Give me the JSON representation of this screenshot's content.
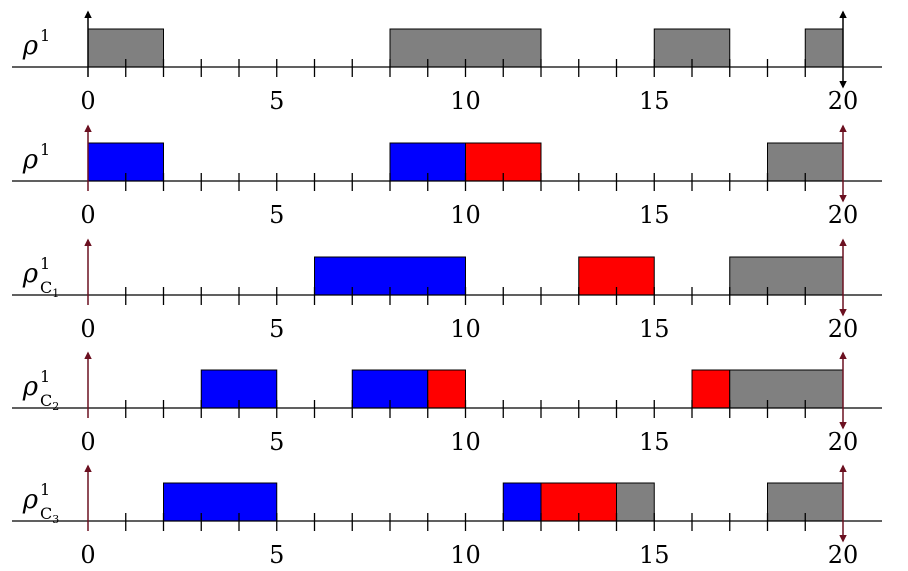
{
  "chart_data": {
    "type": "timeline",
    "x_ticks_labeled": [
      0,
      5,
      10,
      15,
      20
    ],
    "x_range": [
      0,
      20
    ],
    "colors": {
      "gray": "#808080",
      "blue": "#0000ff",
      "red": "#ff0000",
      "dark_red_arrow": "#6b1020",
      "black": "#000000"
    },
    "rows": [
      {
        "label": "ρ",
        "sup": "1",
        "sub": "",
        "left_arrow": "up",
        "left_arrow_color": "black",
        "right_arrow": "both",
        "right_arrow_color": "black",
        "blocks": [
          {
            "start": 0,
            "end": 2,
            "color": "gray"
          },
          {
            "start": 8,
            "end": 12,
            "color": "gray"
          },
          {
            "start": 15,
            "end": 17,
            "color": "gray"
          },
          {
            "start": 19,
            "end": 20,
            "color": "gray"
          }
        ]
      },
      {
        "label": "ρ",
        "sup": "1",
        "sub": "",
        "left_arrow": "up",
        "left_arrow_color": "dark_red_arrow",
        "right_arrow": "both",
        "right_arrow_color": "dark_red_arrow",
        "blocks": [
          {
            "start": 0,
            "end": 2,
            "color": "blue"
          },
          {
            "start": 8,
            "end": 10,
            "color": "blue"
          },
          {
            "start": 10,
            "end": 12,
            "color": "red"
          },
          {
            "start": 18,
            "end": 20,
            "color": "gray"
          }
        ]
      },
      {
        "label": "ρ",
        "sup": "1",
        "sub": "C1",
        "left_arrow": "up",
        "left_arrow_color": "dark_red_arrow",
        "right_arrow": "both",
        "right_arrow_color": "dark_red_arrow",
        "blocks": [
          {
            "start": 6,
            "end": 10,
            "color": "blue"
          },
          {
            "start": 13,
            "end": 15,
            "color": "red"
          },
          {
            "start": 17,
            "end": 20,
            "color": "gray"
          }
        ]
      },
      {
        "label": "ρ",
        "sup": "1",
        "sub": "C2",
        "left_arrow": "up",
        "left_arrow_color": "dark_red_arrow",
        "right_arrow": "both",
        "right_arrow_color": "dark_red_arrow",
        "blocks": [
          {
            "start": 3,
            "end": 5,
            "color": "blue"
          },
          {
            "start": 7,
            "end": 9,
            "color": "blue"
          },
          {
            "start": 9,
            "end": 10,
            "color": "red"
          },
          {
            "start": 16,
            "end": 17,
            "color": "red"
          },
          {
            "start": 17,
            "end": 20,
            "color": "gray"
          }
        ]
      },
      {
        "label": "ρ",
        "sup": "1",
        "sub": "C3",
        "left_arrow": "up",
        "left_arrow_color": "dark_red_arrow",
        "right_arrow": "both",
        "right_arrow_color": "dark_red_arrow",
        "blocks": [
          {
            "start": 2,
            "end": 5,
            "color": "blue"
          },
          {
            "start": 11,
            "end": 12,
            "color": "blue"
          },
          {
            "start": 12,
            "end": 14,
            "color": "red"
          },
          {
            "start": 14,
            "end": 15,
            "color": "gray"
          },
          {
            "start": 18,
            "end": 20,
            "color": "gray"
          }
        ]
      }
    ]
  }
}
